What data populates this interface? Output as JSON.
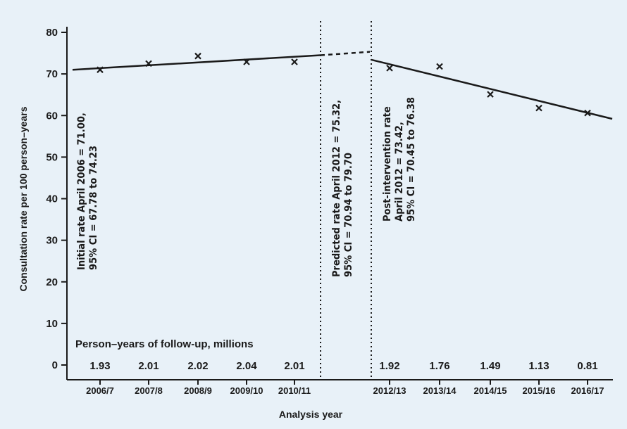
{
  "chart_data": {
    "type": "line",
    "xlabel": "Analysis year",
    "ylabel": "Consultation rate per 100 person–years",
    "ylim": [
      0,
      80
    ],
    "yticks": [
      0,
      10,
      20,
      30,
      40,
      50,
      60,
      70,
      80
    ],
    "categories": [
      "2006/7",
      "2007/8",
      "2008/9",
      "2009/10",
      "2010/11",
      "2012/13",
      "2013/14",
      "2014/15",
      "2015/16",
      "2016/17"
    ],
    "grid": false,
    "observed": [
      {
        "x": "2006/7",
        "y": 71.0
      },
      {
        "x": "2007/8",
        "y": 72.5
      },
      {
        "x": "2008/9",
        "y": 74.3
      },
      {
        "x": "2009/10",
        "y": 72.9
      },
      {
        "x": "2010/11",
        "y": 72.9
      },
      {
        "x": "2012/13",
        "y": 71.4
      },
      {
        "x": "2013/14",
        "y": 71.8
      },
      {
        "x": "2014/15",
        "y": 65.1
      },
      {
        "x": "2015/16",
        "y": 61.8
      },
      {
        "x": "2016/17",
        "y": 60.6
      }
    ],
    "pre_trend": {
      "start": 71.0,
      "end": 74.5
    },
    "predicted_extension": {
      "start": 74.5,
      "end": 75.32
    },
    "post_trend": {
      "start": 73.42,
      "end": 59.2
    },
    "person_years_label": "Person–years of follow-up, millions",
    "person_years": [
      "1.93",
      "2.01",
      "2.02",
      "2.04",
      "2.01",
      "1.92",
      "1.76",
      "1.49",
      "1.13",
      "0.81"
    ],
    "annotations": {
      "initial": [
        "Initial rate April 2006 = 71.00,",
        "95% CI = 67.78 to 74.23"
      ],
      "predicted": [
        "Predicted rate April 2012 = 75.32,",
        "95% CI = 70.94 to 79.70"
      ],
      "post": [
        "Post-intervention rate",
        "April 2012 = 73.42,",
        "95% CI = 70.45 to 76.38"
      ]
    },
    "colors": {
      "background": "#e8f1f8",
      "ink": "#1a1a1a"
    }
  }
}
